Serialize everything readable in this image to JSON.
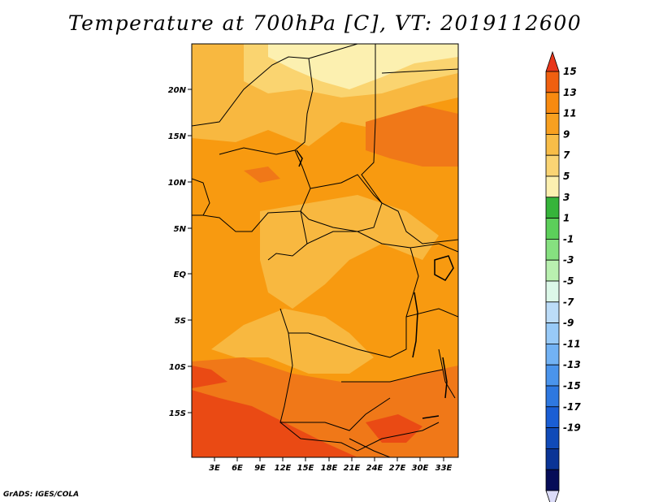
{
  "title": "Temperature at 700hPa [C], VT: 2019112600",
  "credit": "GrADS: IGES/COLA",
  "map": {
    "lon_labels": [
      "3E",
      "6E",
      "9E",
      "12E",
      "15E",
      "18E",
      "21E",
      "24E",
      "27E",
      "30E",
      "33E"
    ],
    "lat_labels": [
      "20N",
      "15N",
      "10N",
      "5N",
      "EQ",
      "5S",
      "10S",
      "15S"
    ]
  },
  "colorbar": {
    "labels": [
      "15",
      "13",
      "11",
      "9",
      "7",
      "5",
      "3",
      "1",
      "-1",
      "-3",
      "-5",
      "-7",
      "-9",
      "-11",
      "-13",
      "-15",
      "-17",
      "-19"
    ],
    "colors": [
      "#e8361a",
      "#f06010",
      "#f88a10",
      "#f8a020",
      "#f8bd48",
      "#fad474",
      "#fcf0b0",
      "#36b43a",
      "#5ccf5a",
      "#86e080",
      "#b9f0b0",
      "#dcf8e8",
      "#bcdcf8",
      "#98caf8",
      "#72b2f4",
      "#4a94ec",
      "#2e78e0",
      "#1a5ed4",
      "#104ab8",
      "#0a3496",
      "#060c58",
      "#dcdcf8"
    ]
  },
  "field": {
    "fill_colors": {
      "t11_13": "#f07818",
      "t9_11": "#f89a10",
      "t7_9": "#f8b840",
      "t5_7": "#fad470",
      "t3_5": "#fcf0b0",
      "t13_15": "#ea4a14"
    }
  }
}
